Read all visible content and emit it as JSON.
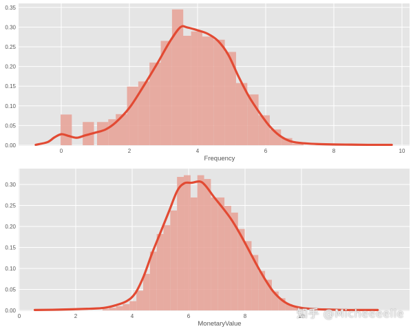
{
  "watermark": "知乎 @Micheeeelle",
  "colors": {
    "background": "#e5e5e5",
    "grid": "#ffffff",
    "bar": "#e8a196",
    "kde": "#e24a33"
  },
  "chart_data": [
    {
      "type": "bar",
      "subtype": "histogram+kde",
      "title": "",
      "xlabel": "Frequency",
      "ylabel": "",
      "xlim": [
        -1.3,
        10.2
      ],
      "ylim": [
        0,
        0.36
      ],
      "xticks": [
        0,
        2,
        4,
        6,
        8,
        10
      ],
      "yticks": [
        0.0,
        0.05,
        0.1,
        0.15,
        0.2,
        0.25,
        0.3,
        0.35
      ],
      "ytick_labels": [
        "0.00",
        "0.05",
        "0.10",
        "0.15",
        "0.20",
        "0.25",
        "0.30",
        "0.35"
      ],
      "grid": true,
      "bin_width": 0.33,
      "bins": [
        {
          "x0": -0.02,
          "h": 0.078
        },
        {
          "x0": 0.63,
          "h": 0.059
        },
        {
          "x0": 1.05,
          "h": 0.059
        },
        {
          "x0": 1.38,
          "h": 0.066
        },
        {
          "x0": 1.6,
          "h": 0.079
        },
        {
          "x0": 1.93,
          "h": 0.149
        },
        {
          "x0": 2.26,
          "h": 0.162
        },
        {
          "x0": 2.59,
          "h": 0.21
        },
        {
          "x0": 2.92,
          "h": 0.265
        },
        {
          "x0": 3.25,
          "h": 0.345
        },
        {
          "x0": 3.48,
          "h": 0.278
        },
        {
          "x0": 3.81,
          "h": 0.289
        },
        {
          "x0": 4.14,
          "h": 0.276
        },
        {
          "x0": 4.47,
          "h": 0.268
        },
        {
          "x0": 4.8,
          "h": 0.237
        },
        {
          "x0": 5.13,
          "h": 0.158
        },
        {
          "x0": 5.46,
          "h": 0.129
        },
        {
          "x0": 5.79,
          "h": 0.076
        },
        {
          "x0": 6.12,
          "h": 0.04
        },
        {
          "x0": 6.45,
          "h": 0.018
        },
        {
          "x0": 6.78,
          "h": 0.004
        }
      ],
      "kde": {
        "x": [
          -0.75,
          -0.4,
          -0.2,
          0.0,
          0.2,
          0.45,
          0.7,
          1.0,
          1.3,
          1.6,
          2.0,
          2.4,
          2.8,
          3.2,
          3.5,
          3.7,
          4.0,
          4.3,
          4.6,
          4.9,
          5.2,
          5.5,
          5.8,
          6.1,
          6.4,
          6.7,
          7.0,
          7.5,
          8.0,
          8.5,
          9.0,
          9.7
        ],
        "y": [
          0.001,
          0.008,
          0.02,
          0.028,
          0.024,
          0.019,
          0.025,
          0.032,
          0.04,
          0.058,
          0.095,
          0.148,
          0.205,
          0.265,
          0.3,
          0.299,
          0.292,
          0.283,
          0.265,
          0.23,
          0.175,
          0.125,
          0.085,
          0.05,
          0.025,
          0.011,
          0.006,
          0.003,
          0.002,
          0.0015,
          0.001,
          0.001
        ]
      }
    },
    {
      "type": "bar",
      "subtype": "histogram+kde",
      "title": "",
      "xlabel": "MonetaryValue",
      "ylabel": "",
      "xlim": [
        0,
        13.8
      ],
      "ylim": [
        0,
        0.34
      ],
      "xticks": [
        0,
        2,
        4,
        6,
        8,
        10
      ],
      "yticks": [
        0.0,
        0.05,
        0.1,
        0.15,
        0.2,
        0.25,
        0.3
      ],
      "ytick_labels": [
        "0.00",
        "0.05",
        "0.10",
        "0.15",
        "0.20",
        "0.25",
        "0.30"
      ],
      "grid": true,
      "bin_width": 0.24,
      "bins": [
        {
          "x0": 2.95,
          "h": 0.003
        },
        {
          "x0": 3.19,
          "h": 0.006
        },
        {
          "x0": 3.43,
          "h": 0.01
        },
        {
          "x0": 3.67,
          "h": 0.015
        },
        {
          "x0": 3.91,
          "h": 0.022
        },
        {
          "x0": 4.15,
          "h": 0.047
        },
        {
          "x0": 4.39,
          "h": 0.087
        },
        {
          "x0": 4.63,
          "h": 0.14
        },
        {
          "x0": 4.87,
          "h": 0.182
        },
        {
          "x0": 5.11,
          "h": 0.203
        },
        {
          "x0": 5.35,
          "h": 0.238
        },
        {
          "x0": 5.59,
          "h": 0.318
        },
        {
          "x0": 5.83,
          "h": 0.322
        },
        {
          "x0": 6.07,
          "h": 0.269
        },
        {
          "x0": 6.31,
          "h": 0.322
        },
        {
          "x0": 6.55,
          "h": 0.313
        },
        {
          "x0": 6.79,
          "h": 0.269
        },
        {
          "x0": 7.03,
          "h": 0.269
        },
        {
          "x0": 7.27,
          "h": 0.249
        },
        {
          "x0": 7.51,
          "h": 0.233
        },
        {
          "x0": 7.75,
          "h": 0.194
        },
        {
          "x0": 7.99,
          "h": 0.165
        },
        {
          "x0": 8.23,
          "h": 0.132
        },
        {
          "x0": 8.47,
          "h": 0.094
        },
        {
          "x0": 8.71,
          "h": 0.073
        },
        {
          "x0": 8.95,
          "h": 0.045
        },
        {
          "x0": 9.19,
          "h": 0.029
        },
        {
          "x0": 9.43,
          "h": 0.015
        },
        {
          "x0": 9.67,
          "h": 0.008
        },
        {
          "x0": 9.91,
          "h": 0.004
        }
      ],
      "kde": {
        "x": [
          0.55,
          1.5,
          2.5,
          3.0,
          3.4,
          3.8,
          4.1,
          4.4,
          4.7,
          5.0,
          5.3,
          5.6,
          5.85,
          6.1,
          6.4,
          6.6,
          6.9,
          7.2,
          7.5,
          7.8,
          8.1,
          8.4,
          8.7,
          9.0,
          9.3,
          9.6,
          10.0,
          10.5,
          11.0,
          11.5,
          12.0,
          12.7
        ],
        "y": [
          0.001,
          0.002,
          0.004,
          0.006,
          0.012,
          0.022,
          0.04,
          0.08,
          0.135,
          0.185,
          0.235,
          0.285,
          0.303,
          0.304,
          0.307,
          0.297,
          0.27,
          0.245,
          0.218,
          0.185,
          0.148,
          0.11,
          0.075,
          0.045,
          0.025,
          0.013,
          0.006,
          0.003,
          0.002,
          0.001,
          0.001,
          0.001
        ]
      }
    }
  ]
}
